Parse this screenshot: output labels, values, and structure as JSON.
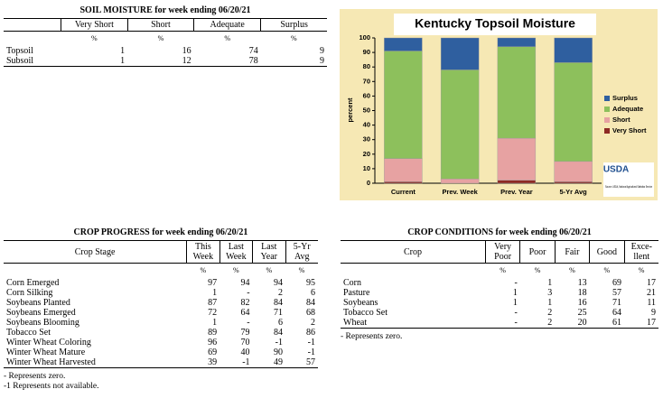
{
  "soil_moisture": {
    "title": "SOIL MOISTURE for week ending 06/20/21",
    "columns": [
      "Very Short",
      "Short",
      "Adequate",
      "Surplus"
    ],
    "units": [
      "%",
      "%",
      "%",
      "%"
    ],
    "rows": [
      {
        "label": "Topsoil",
        "values": [
          1,
          16,
          74,
          9
        ]
      },
      {
        "label": "Subsoil",
        "values": [
          1,
          12,
          78,
          9
        ]
      }
    ]
  },
  "crop_progress": {
    "title": "CROP PROGRESS for week ending 06/20/21",
    "stub": "Crop Stage",
    "columns": [
      "This\nWeek",
      "Last\nWeek",
      "Last\nYear",
      "5-Yr\nAvg"
    ],
    "units": [
      "%",
      "%",
      "%",
      "%"
    ],
    "rows": [
      {
        "label": "Corn Emerged",
        "values": [
          97,
          94,
          94,
          95
        ]
      },
      {
        "label": "Corn Silking",
        "values": [
          1,
          "-",
          2,
          6
        ]
      },
      {
        "label": "Soybeans Planted",
        "values": [
          87,
          82,
          84,
          84
        ]
      },
      {
        "label": "Soybeans Emerged",
        "values": [
          72,
          64,
          71,
          68
        ]
      },
      {
        "label": "Soybeans Blooming",
        "values": [
          1,
          "-",
          6,
          2
        ]
      },
      {
        "label": "Tobacco Set",
        "values": [
          89,
          79,
          84,
          86
        ]
      },
      {
        "label": "Winter Wheat Coloring",
        "values": [
          96,
          70,
          -1,
          -1
        ]
      },
      {
        "label": "Winter Wheat Mature",
        "values": [
          69,
          40,
          90,
          -1
        ]
      },
      {
        "label": "Winter Wheat Harvested",
        "values": [
          39,
          -1,
          49,
          57
        ]
      }
    ],
    "footnotes": [
      "- Represents zero.",
      "-1 Represents not available."
    ]
  },
  "crop_conditions": {
    "title": "CROP CONDITIONS for week ending 06/20/21",
    "stub": "Crop",
    "columns": [
      "Very\nPoor",
      "Poor",
      "Fair",
      "Good",
      "Exce-\nllent"
    ],
    "units": [
      "%",
      "%",
      "%",
      "%",
      "%"
    ],
    "rows": [
      {
        "label": "Corn",
        "values": [
          "-",
          1,
          13,
          69,
          17
        ]
      },
      {
        "label": "Pasture",
        "values": [
          1,
          3,
          18,
          57,
          21
        ]
      },
      {
        "label": "Soybeans",
        "values": [
          1,
          1,
          16,
          71,
          11
        ]
      },
      {
        "label": "Tobacco Set",
        "values": [
          "-",
          2,
          25,
          64,
          9
        ]
      },
      {
        "label": "Wheat",
        "values": [
          "-",
          2,
          20,
          61,
          17
        ]
      }
    ],
    "footnotes": [
      "- Represents zero."
    ]
  },
  "chart_data": {
    "type": "stacked_bar",
    "title": "Kentucky Topsoil Moisture",
    "ylabel": "percent",
    "categories": [
      "Current",
      "Prev. Week",
      "Prev. Year",
      "5-Yr Avg"
    ],
    "series": [
      {
        "name": "Surplus",
        "color": "#2f5f9f",
        "values": [
          9,
          22,
          6,
          17
        ]
      },
      {
        "name": "Adequate",
        "color": "#8dc05c",
        "values": [
          74,
          75,
          63,
          68
        ]
      },
      {
        "name": "Short",
        "color": "#e7a2a2",
        "values": [
          16,
          3,
          29,
          14
        ]
      },
      {
        "name": "Very Short",
        "color": "#8e2a24",
        "values": [
          1,
          0,
          2,
          1
        ]
      }
    ],
    "ylim": [
      0,
      100
    ],
    "yticks": [
      0,
      10,
      20,
      30,
      40,
      50,
      60,
      70,
      80,
      90,
      100
    ],
    "source_logo": "USDA",
    "source": "Source: USDA, National Agricultural Statistics Service"
  }
}
